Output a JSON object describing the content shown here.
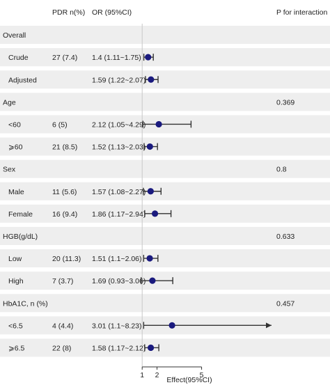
{
  "chart_data": {
    "type": "forest",
    "headers": {
      "n": "PDR n(%)",
      "ci": "OR (95%CI)",
      "p": "P for interaction"
    },
    "xlabel": "Effect(95%CI)",
    "xticks": [
      1,
      2,
      5
    ],
    "xlim": [
      0.1,
      8.3
    ],
    "reference_line": 1,
    "rows": [
      {
        "kind": "group",
        "label": "Overall",
        "p": ""
      },
      {
        "kind": "item",
        "label": "Crude",
        "n": "27 (7.4)",
        "ci_text": "1.4 (1.11~1.75)",
        "or": 1.4,
        "lo": 1.11,
        "hi": 1.75
      },
      {
        "kind": "item",
        "label": "Adjusted",
        "n": "",
        "ci_text": "1.59 (1.22~2.07)",
        "or": 1.59,
        "lo": 1.22,
        "hi": 2.07
      },
      {
        "kind": "group",
        "label": "Age",
        "p": "0.369"
      },
      {
        "kind": "item",
        "label": "<60",
        "n": "6 (5)",
        "ci_text": "2.12 (1.05~4.29)",
        "or": 2.12,
        "lo": 1.05,
        "hi": 4.29
      },
      {
        "kind": "item",
        "label": "⩾60",
        "n": "21 (8.5)",
        "ci_text": "1.52 (1.13~2.03)",
        "or": 1.52,
        "lo": 1.13,
        "hi": 2.03
      },
      {
        "kind": "group",
        "label": "Sex",
        "p": "0.8"
      },
      {
        "kind": "item",
        "label": "Male",
        "n": "11 (5.6)",
        "ci_text": "1.57 (1.08~2.27)",
        "or": 1.57,
        "lo": 1.08,
        "hi": 2.27
      },
      {
        "kind": "item",
        "label": "Female",
        "n": "16 (9.4)",
        "ci_text": "1.86 (1.17~2.94)",
        "or": 1.86,
        "lo": 1.17,
        "hi": 2.94
      },
      {
        "kind": "group",
        "label": "HGB(g/dL)",
        "p": "0.633"
      },
      {
        "kind": "item",
        "label": "Low",
        "n": "20 (11.3)",
        "ci_text": "1.51 (1.1~2.06)",
        "or": 1.51,
        "lo": 1.1,
        "hi": 2.06
      },
      {
        "kind": "item",
        "label": "High",
        "n": "7 (3.7)",
        "ci_text": "1.69 (0.93~3.06)",
        "or": 1.69,
        "lo": 0.93,
        "hi": 3.06
      },
      {
        "kind": "group",
        "label": "HbA1C, n (%)",
        "p": "0.457"
      },
      {
        "kind": "item",
        "label": "<6.5",
        "n": "4 (4.4)",
        "ci_text": "3.01 (1.1~8.23)",
        "or": 3.01,
        "lo": 1.1,
        "hi": 8.23,
        "arrow": true
      },
      {
        "kind": "item",
        "label": "⩾6.5",
        "n": "22 (8)",
        "ci_text": "1.58 (1.17~2.12)",
        "or": 1.58,
        "lo": 1.17,
        "hi": 2.12
      }
    ],
    "colors": {
      "shade": "#eeeeee",
      "point": "#1a1a7e",
      "whisker": "#333333",
      "reference": "#c8c8c8",
      "axis": "#333333"
    }
  }
}
